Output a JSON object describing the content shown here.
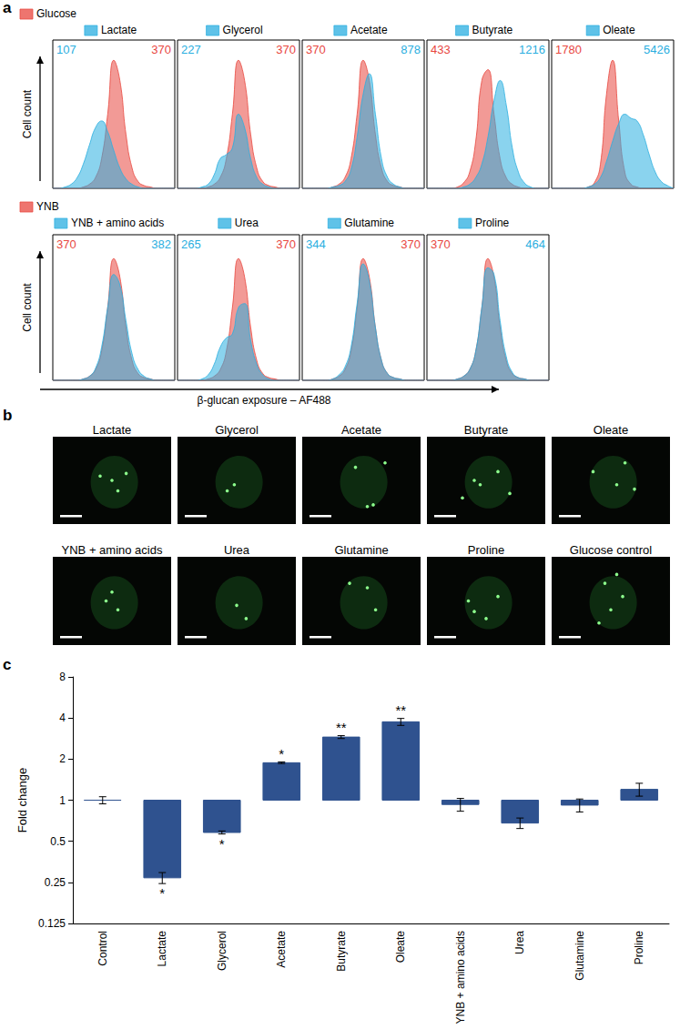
{
  "chart_data": [
    {
      "type": "area",
      "panel": "a",
      "tick_labels": false,
      "x_label": "β-glucan exposure – AF488",
      "xlim": [
        0,
        20
      ],
      "ylim": [
        0,
        110
      ],
      "x": [
        0,
        1,
        2,
        3,
        4,
        5,
        6,
        7,
        8,
        9,
        10,
        11,
        12,
        13,
        14,
        15,
        16,
        17,
        18,
        19,
        20
      ],
      "rows": [
        {
          "y_label": "Cell count",
          "reference": {
            "name": "Glucose",
            "color": "#e8473f"
          },
          "panels": [
            {
              "reference_values": [
                0,
                0,
                0,
                0,
                0,
                1,
                3,
                8,
                22,
                55,
                95,
                80,
                40,
                15,
                5,
                2,
                1,
                0,
                0,
                0,
                0
              ],
              "reference_mfi": 370,
              "name": "Lactate",
              "color": "#2aaee0",
              "values": [
                0,
                0,
                1,
                3,
                8,
                18,
                32,
                45,
                50,
                42,
                28,
                15,
                7,
                3,
                1,
                0,
                0,
                0,
                0,
                0,
                0
              ],
              "mfi": 107
            },
            {
              "reference_values": [
                0,
                0,
                0,
                0,
                0,
                1,
                3,
                8,
                22,
                55,
                95,
                80,
                40,
                15,
                5,
                2,
                1,
                0,
                0,
                0,
                0
              ],
              "reference_mfi": 370,
              "name": "Glycerol",
              "color": "#2aaee0",
              "values": [
                0,
                0,
                0,
                0,
                1,
                3,
                10,
                22,
                25,
                30,
                55,
                45,
                22,
                8,
                3,
                1,
                0,
                0,
                0,
                0,
                0
              ],
              "mfi": 227
            },
            {
              "reference_values": [
                0,
                0,
                0,
                0,
                0,
                1,
                3,
                8,
                22,
                55,
                95,
                80,
                40,
                15,
                5,
                2,
                1,
                0,
                0,
                0,
                0
              ],
              "reference_mfi": 370,
              "name": "Acetate",
              "color": "#2aaee0",
              "values": [
                0,
                0,
                0,
                0,
                0,
                1,
                2,
                5,
                14,
                38,
                70,
                85,
                55,
                22,
                8,
                3,
                1,
                0,
                0,
                0,
                0
              ],
              "mfi": 878
            },
            {
              "reference_values": [
                0,
                0,
                0,
                0,
                0,
                1,
                4,
                12,
                35,
                80,
                88,
                55,
                22,
                8,
                3,
                1,
                0,
                0,
                0,
                0,
                0
              ],
              "reference_mfi": 433,
              "name": "Butyrate",
              "color": "#2aaee0",
              "values": [
                0,
                0,
                0,
                0,
                0,
                0,
                1,
                3,
                8,
                18,
                38,
                65,
                80,
                62,
                30,
                12,
                4,
                1,
                0,
                0,
                0
              ],
              "mfi": 1216
            },
            {
              "reference_values": [
                0,
                0,
                0,
                0,
                0,
                0,
                1,
                4,
                18,
                70,
                95,
                50,
                12,
                3,
                1,
                0,
                0,
                0,
                0,
                0,
                0
              ],
              "reference_mfi": 1780,
              "name": "Oleate",
              "color": "#2aaee0",
              "values": [
                0,
                0,
                0,
                0,
                0,
                0,
                1,
                3,
                8,
                20,
                35,
                48,
                55,
                52,
                50,
                40,
                25,
                12,
                5,
                2,
                0
              ],
              "mfi": 5426
            }
          ]
        },
        {
          "y_label": "Cell count",
          "reference": {
            "name": "YNB",
            "color": "#e8473f"
          },
          "panels": [
            {
              "reference_values": [
                0,
                0,
                0,
                0,
                0,
                1,
                3,
                8,
                22,
                55,
                92,
                78,
                40,
                15,
                5,
                2,
                1,
                0,
                0,
                0,
                0
              ],
              "reference_mfi": 370,
              "name": "YNB + amino acids",
              "color": "#2aaee0",
              "values": [
                0,
                0,
                0,
                0,
                0,
                1,
                3,
                9,
                25,
                55,
                80,
                72,
                45,
                20,
                8,
                3,
                1,
                0,
                0,
                0,
                0
              ],
              "mfi": 382
            },
            {
              "reference_values": [
                0,
                0,
                0,
                0,
                0,
                1,
                3,
                8,
                22,
                55,
                92,
                78,
                40,
                15,
                5,
                2,
                1,
                0,
                0,
                0,
                0
              ],
              "reference_mfi": 370,
              "name": "Urea",
              "color": "#2aaee0",
              "values": [
                0,
                0,
                0,
                0,
                1,
                4,
                12,
                25,
                32,
                35,
                55,
                58,
                30,
                12,
                4,
                1,
                0,
                0,
                0,
                0,
                0
              ],
              "mfi": 265
            },
            {
              "reference_values": [
                0,
                0,
                0,
                0,
                0,
                1,
                3,
                8,
                22,
                55,
                92,
                78,
                40,
                15,
                5,
                2,
                1,
                0,
                0,
                0,
                0
              ],
              "reference_mfi": 370,
              "name": "Glutamine",
              "color": "#2aaee0",
              "values": [
                0,
                0,
                0,
                0,
                0,
                1,
                4,
                10,
                25,
                58,
                88,
                75,
                40,
                15,
                5,
                2,
                1,
                0,
                0,
                0,
                0
              ],
              "mfi": 344
            },
            {
              "reference_values": [
                0,
                0,
                0,
                0,
                0,
                1,
                3,
                8,
                22,
                55,
                92,
                78,
                40,
                15,
                5,
                2,
                1,
                0,
                0,
                0,
                0
              ],
              "reference_mfi": 370,
              "name": "Proline",
              "color": "#2aaee0",
              "values": [
                0,
                0,
                0,
                0,
                0,
                1,
                3,
                8,
                22,
                55,
                85,
                80,
                45,
                18,
                6,
                2,
                1,
                0,
                0,
                0,
                0
              ],
              "mfi": 464
            }
          ]
        }
      ]
    },
    {
      "type": "image",
      "panel": "b",
      "titles": [
        "Lactate",
        "Glycerol",
        "Acetate",
        "Butyrate",
        "Oleate",
        "YNB + amino acids",
        "Urea",
        "Glutamine",
        "Proline",
        "Glucose control"
      ]
    },
    {
      "type": "bar",
      "panel": "c",
      "y_label": "Fold change",
      "categories": [
        "Control",
        "Lactate",
        "Glycerol",
        "Acetate",
        "Butyrate",
        "Oleate",
        "YNB + amino acids",
        "Urea",
        "Glutamine",
        "Proline"
      ],
      "values": [
        1.0,
        0.27,
        0.58,
        1.88,
        2.9,
        3.75,
        0.93,
        0.68,
        0.92,
        1.2
      ],
      "errors": [
        0.06,
        0.025,
        0.015,
        0.025,
        0.07,
        0.22,
        0.1,
        0.06,
        0.1,
        0.13
      ],
      "significance": [
        null,
        "*",
        "*",
        "*",
        "**",
        "**",
        null,
        null,
        null,
        null
      ],
      "baseline": 1,
      "color": "#2f528f",
      "log": "y",
      "ylim": [
        0.125,
        8
      ],
      "yticks": [
        0.125,
        0.25,
        0.5,
        1,
        2,
        4,
        8
      ]
    }
  ]
}
